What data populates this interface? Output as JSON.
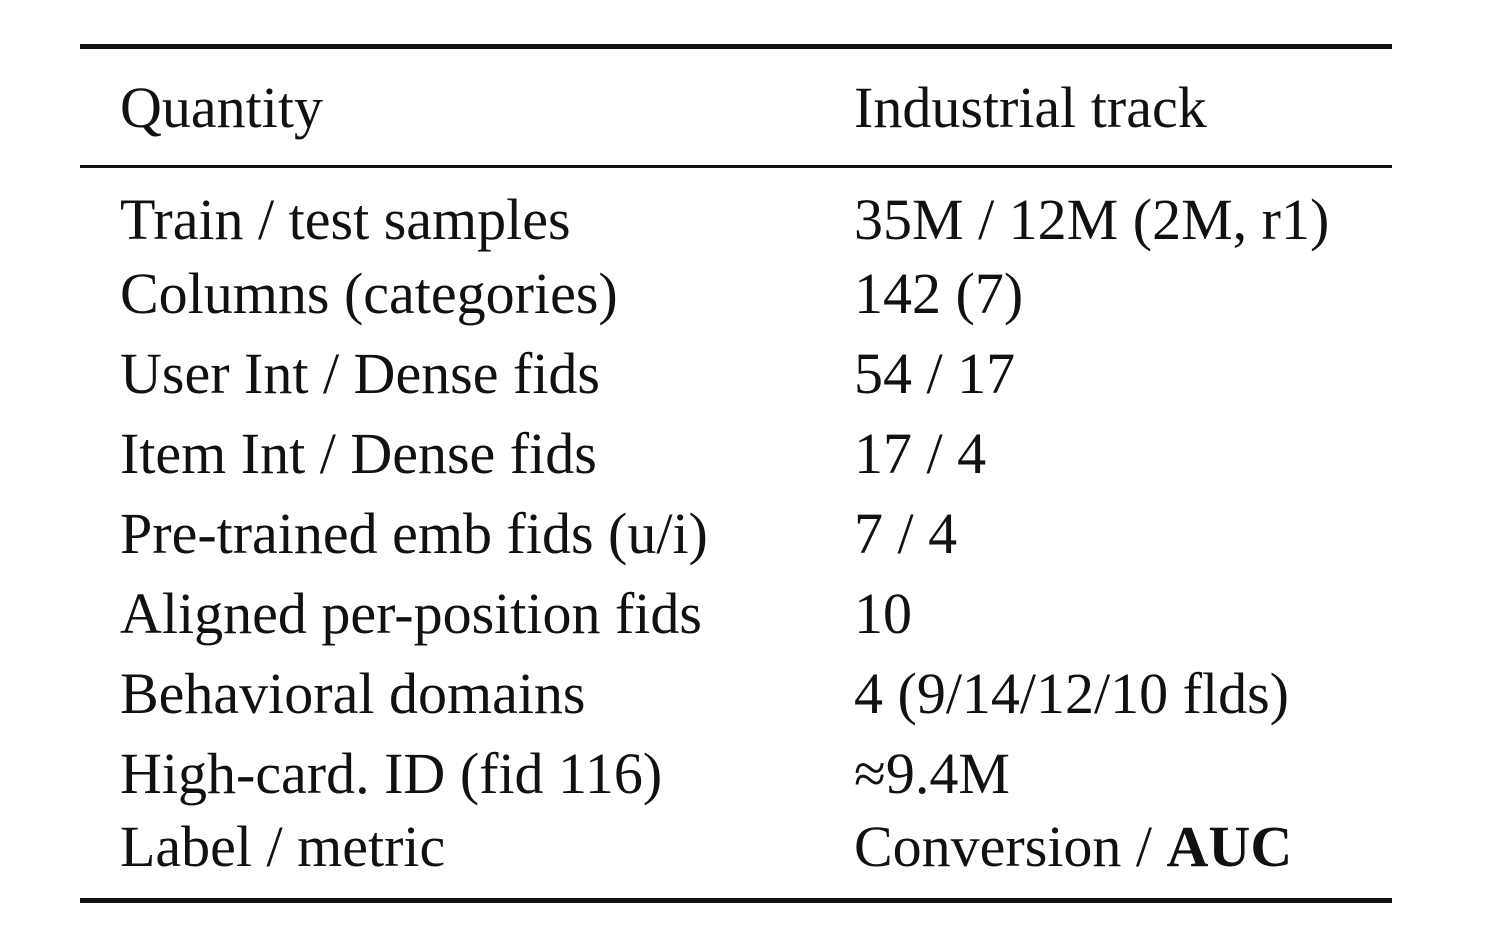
{
  "table": {
    "headers": [
      "Quantity",
      "Industrial track"
    ],
    "rows": [
      {
        "quantity": "Train / test samples",
        "value": "35M / 12M (2M, r1)"
      },
      {
        "quantity": "Columns (categories)",
        "value": "142 (7)"
      },
      {
        "quantity": "User Int / Dense fids",
        "value": "54 / 17"
      },
      {
        "quantity": "Item Int / Dense fids",
        "value": "17 / 4"
      },
      {
        "quantity": "Pre-trained emb fids (u/i)",
        "value": "7 / 4"
      },
      {
        "quantity": "Aligned per-position fids",
        "value": "10"
      },
      {
        "quantity": "Behavioral domains",
        "value": "4 (9/14/12/10 flds)"
      },
      {
        "quantity": "High-card. ID (fid 116)",
        "value": "≈9.4M"
      },
      {
        "quantity": "Label / metric",
        "value_prefix": "Conversion / ",
        "value_bold": "AUC"
      }
    ]
  }
}
